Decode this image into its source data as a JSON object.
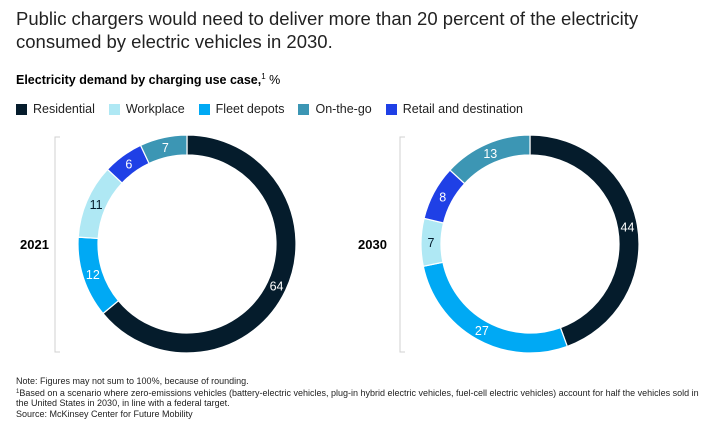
{
  "title": "Public chargers would need to deliver more than 20 percent of the electricity consumed by electric vehicles in 2030.",
  "subtitle": {
    "bold": "Electricity demand by charging use case,",
    "footnote_mark": "1",
    "unit": "%"
  },
  "colors": {
    "Residential": "#051c2c",
    "Workplace": "#afe8f4",
    "Fleet depots": "#00a9f4",
    "On-the-go": "#3c96b4",
    "Retail and destination": "#1f40e6"
  },
  "chart_data": [
    {
      "type": "pie",
      "title": "2021",
      "categories": [
        "Residential",
        "Workplace",
        "Fleet depots",
        "On-the-go",
        "Retail and destination"
      ],
      "values": [
        64,
        11,
        12,
        7,
        6
      ],
      "order": [
        "Residential",
        "Fleet depots",
        "Workplace",
        "Retail and destination",
        "On-the-go"
      ]
    },
    {
      "type": "pie",
      "title": "2030",
      "categories": [
        "Residential",
        "Workplace",
        "Fleet depots",
        "On-the-go",
        "Retail and destination"
      ],
      "values": [
        44,
        7,
        27,
        13,
        8
      ],
      "order": [
        "Residential",
        "Fleet depots",
        "Workplace",
        "Retail and destination",
        "On-the-go"
      ]
    }
  ],
  "notes": {
    "note": "Note: Figures may not sum to 100%, because of rounding.",
    "footnote_mark": "1",
    "footnote": "Based on a scenario where zero-emissions vehicles (battery-electric vehicles, plug-in hybrid electric vehicles, fuel-cell electric vehicles) account for half the vehicles sold in the United States in 2030, in line with a federal target.",
    "source": "Source: McKinsey Center for Future Mobility"
  }
}
